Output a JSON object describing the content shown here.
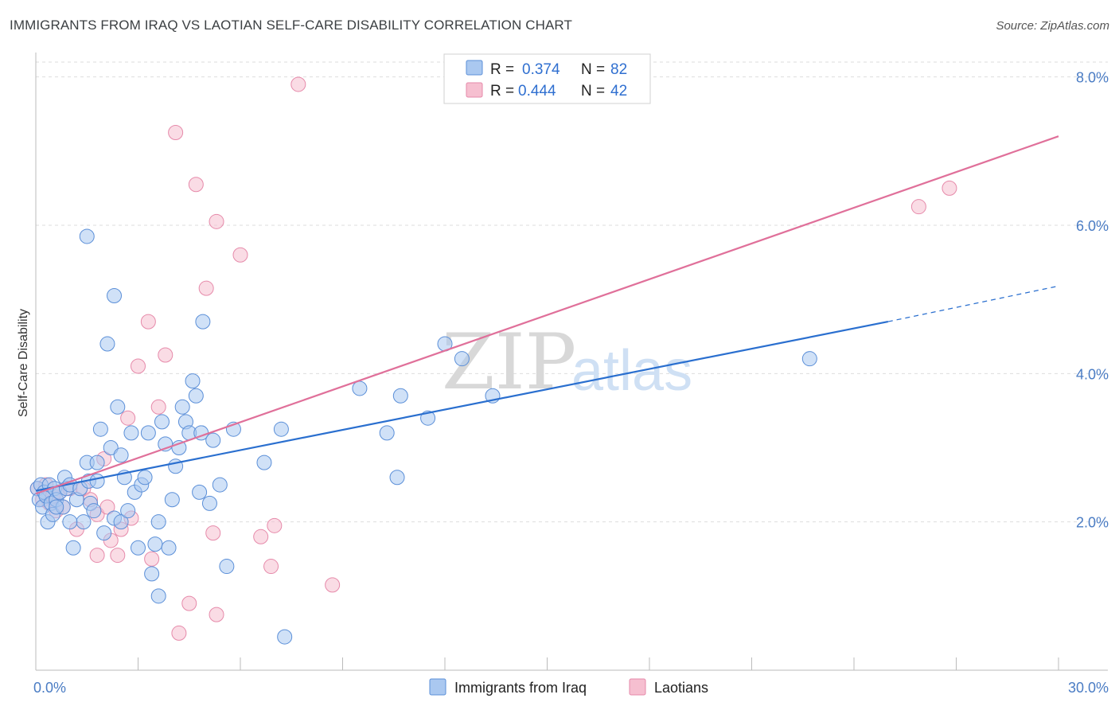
{
  "title": "IMMIGRANTS FROM IRAQ VS LAOTIAN SELF-CARE DISABILITY CORRELATION CHART",
  "source": "Source: ZipAtlas.com",
  "watermark": {
    "zip": "ZIP",
    "atlas": "atlas"
  },
  "colors": {
    "blue_fill": "#aac8f0",
    "blue_stroke": "#5b8fd8",
    "blue_line": "#2a6fcf",
    "pink_fill": "#f6bfd0",
    "pink_stroke": "#e68aaa",
    "pink_line": "#e0709a",
    "grid": "#dddddd",
    "tick_text": "#4a7cc4"
  },
  "legend": {
    "r_label": "R =",
    "n_label": "N =",
    "rows": [
      {
        "series": "blue",
        "r": "0.374",
        "n": "82"
      },
      {
        "series": "pink",
        "r": "0.444",
        "n": "42"
      }
    ]
  },
  "bottom_legend": [
    {
      "series": "blue",
      "label": "Immigrants from Iraq"
    },
    {
      "series": "pink",
      "label": "Laotians"
    }
  ],
  "chart_data": {
    "type": "scatter",
    "title": "IMMIGRANTS FROM IRAQ VS LAOTIAN SELF-CARE DISABILITY CORRELATION CHART",
    "xlabel": "",
    "ylabel": "Self-Care Disability",
    "xlim": [
      0,
      30
    ],
    "ylim": [
      0,
      8.2
    ],
    "x_tick_labels": [
      "0.0%",
      "30.0%"
    ],
    "y_ticks": [
      2,
      4,
      6,
      8
    ],
    "y_tick_labels": [
      "2.0%",
      "4.0%",
      "6.0%",
      "8.0%"
    ],
    "series": [
      {
        "name": "Immigrants from Iraq",
        "color": "blue",
        "r": 0.374,
        "n": 82,
        "trend": {
          "x0": 0,
          "y0": 2.42,
          "x1": 25.0,
          "y1": 4.7,
          "dashed_to_x": 30,
          "dashed_to_y": 5.18
        },
        "points": [
          [
            0.05,
            2.45
          ],
          [
            0.1,
            2.3
          ],
          [
            0.15,
            2.5
          ],
          [
            0.2,
            2.2
          ],
          [
            0.25,
            2.4
          ],
          [
            0.3,
            2.35
          ],
          [
            0.35,
            2.0
          ],
          [
            0.4,
            2.5
          ],
          [
            0.45,
            2.25
          ],
          [
            0.5,
            2.1
          ],
          [
            0.55,
            2.45
          ],
          [
            0.6,
            2.3
          ],
          [
            0.7,
            2.4
          ],
          [
            0.8,
            2.2
          ],
          [
            0.85,
            2.6
          ],
          [
            0.9,
            2.45
          ],
          [
            1.0,
            2.5
          ],
          [
            1.1,
            1.65
          ],
          [
            1.2,
            2.3
          ],
          [
            1.3,
            2.45
          ],
          [
            1.4,
            2.0
          ],
          [
            1.5,
            2.8
          ],
          [
            1.55,
            2.55
          ],
          [
            1.6,
            2.25
          ],
          [
            1.7,
            2.15
          ],
          [
            1.8,
            2.8
          ],
          [
            1.9,
            3.25
          ],
          [
            2.0,
            1.85
          ],
          [
            2.1,
            4.4
          ],
          [
            2.2,
            3.0
          ],
          [
            2.3,
            2.05
          ],
          [
            2.4,
            3.55
          ],
          [
            2.5,
            2.0
          ],
          [
            2.6,
            2.6
          ],
          [
            2.7,
            2.15
          ],
          [
            2.8,
            3.2
          ],
          [
            2.9,
            2.4
          ],
          [
            3.0,
            1.65
          ],
          [
            3.1,
            2.5
          ],
          [
            3.2,
            2.6
          ],
          [
            3.3,
            3.2
          ],
          [
            3.4,
            1.3
          ],
          [
            3.5,
            1.7
          ],
          [
            3.6,
            1.0
          ],
          [
            3.7,
            3.35
          ],
          [
            3.8,
            3.05
          ],
          [
            3.9,
            1.65
          ],
          [
            4.0,
            2.3
          ],
          [
            4.1,
            2.75
          ],
          [
            4.2,
            3.0
          ],
          [
            4.3,
            3.55
          ],
          [
            4.4,
            3.35
          ],
          [
            4.5,
            3.2
          ],
          [
            4.6,
            3.9
          ],
          [
            4.7,
            3.7
          ],
          [
            4.8,
            2.4
          ],
          [
            4.85,
            3.2
          ],
          [
            4.9,
            4.7
          ],
          [
            5.1,
            2.25
          ],
          [
            5.2,
            3.1
          ],
          [
            5.4,
            2.5
          ],
          [
            5.6,
            1.4
          ],
          [
            5.8,
            3.25
          ],
          [
            6.7,
            2.8
          ],
          [
            7.2,
            3.25
          ],
          [
            7.3,
            0.45
          ],
          [
            9.5,
            3.8
          ],
          [
            10.3,
            3.2
          ],
          [
            10.6,
            2.6
          ],
          [
            10.7,
            3.7
          ],
          [
            11.5,
            3.4
          ],
          [
            12.0,
            4.4
          ],
          [
            12.5,
            4.2
          ],
          [
            13.4,
            3.7
          ],
          [
            22.7,
            4.2
          ],
          [
            1.5,
            5.85
          ],
          [
            2.3,
            5.05
          ],
          [
            1.8,
            2.55
          ],
          [
            2.5,
            2.9
          ],
          [
            3.6,
            2.0
          ],
          [
            0.6,
            2.2
          ],
          [
            1.0,
            2.0
          ]
        ]
      },
      {
        "name": "Laotians",
        "color": "pink",
        "r": 0.444,
        "n": 42,
        "trend": {
          "x0": 0,
          "y0": 2.38,
          "x1": 30,
          "y1": 7.2
        },
        "points": [
          [
            0.05,
            2.45
          ],
          [
            0.2,
            2.3
          ],
          [
            0.3,
            2.5
          ],
          [
            0.4,
            2.25
          ],
          [
            0.5,
            2.35
          ],
          [
            0.6,
            2.15
          ],
          [
            0.7,
            2.4
          ],
          [
            0.8,
            2.2
          ],
          [
            1.0,
            2.45
          ],
          [
            1.2,
            1.9
          ],
          [
            1.4,
            2.45
          ],
          [
            1.6,
            2.3
          ],
          [
            1.8,
            2.1
          ],
          [
            1.8,
            1.55
          ],
          [
            2.0,
            2.85
          ],
          [
            2.1,
            2.2
          ],
          [
            2.2,
            1.75
          ],
          [
            2.4,
            1.55
          ],
          [
            2.5,
            1.9
          ],
          [
            2.7,
            3.4
          ],
          [
            2.8,
            2.05
          ],
          [
            3.0,
            4.1
          ],
          [
            3.3,
            4.7
          ],
          [
            3.4,
            1.5
          ],
          [
            3.6,
            3.55
          ],
          [
            3.8,
            4.25
          ],
          [
            4.2,
            0.5
          ],
          [
            4.5,
            0.9
          ],
          [
            4.7,
            6.55
          ],
          [
            5.0,
            5.15
          ],
          [
            5.2,
            1.85
          ],
          [
            5.3,
            6.05
          ],
          [
            5.3,
            0.75
          ],
          [
            6.0,
            5.6
          ],
          [
            6.6,
            1.8
          ],
          [
            6.9,
            1.4
          ],
          [
            7.0,
            1.95
          ],
          [
            7.7,
            7.9
          ],
          [
            8.7,
            1.15
          ],
          [
            4.1,
            7.25
          ],
          [
            25.9,
            6.25
          ],
          [
            26.8,
            6.5
          ]
        ]
      }
    ]
  }
}
